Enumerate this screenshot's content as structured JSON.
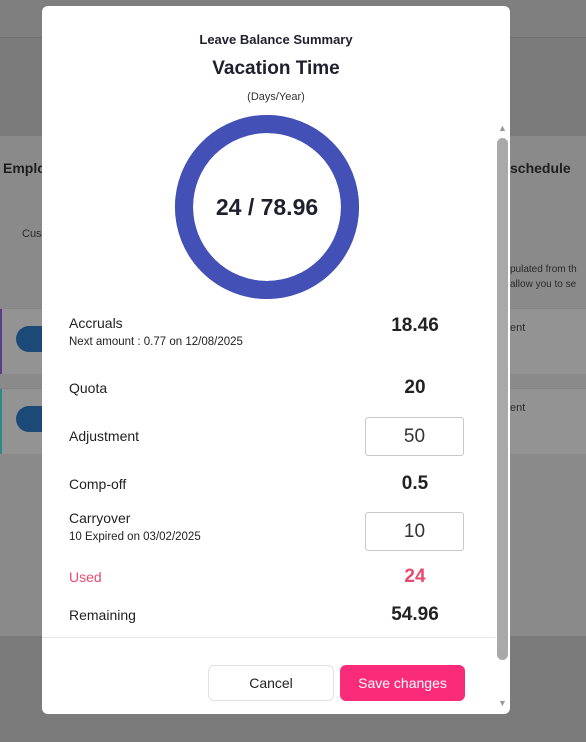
{
  "background": {
    "left_heading": "Emplo",
    "left_small": "Cus",
    "right_heading": "schedule",
    "right_small_1": "pulated from th",
    "right_small_2": "allow you to se",
    "right_row_1": "ent",
    "right_row_2": "ent"
  },
  "modal": {
    "title": "Leave Balance Summary",
    "leave_type": "Vacation Time",
    "unit": "(Days/Year)",
    "donut_label": "24 / 78.96",
    "donut_used": 24,
    "donut_total": 78.96,
    "donut_color": "#4351b6",
    "rows": {
      "accruals": {
        "label": "Accruals",
        "sub": "Next amount : 0.77 on 12/08/2025",
        "value": "18.46"
      },
      "quota": {
        "label": "Quota",
        "value": "20"
      },
      "adjustment": {
        "label": "Adjustment",
        "value": "50"
      },
      "compoff": {
        "label": "Comp-off",
        "value": "0.5"
      },
      "carryover": {
        "label": "Carryover",
        "sub": "10 Expired on 03/02/2025",
        "value": "10"
      },
      "used": {
        "label": "Used",
        "value": "24",
        "color": "#e84b6d"
      },
      "remaining": {
        "label": "Remaining",
        "value": "54.96"
      }
    },
    "buttons": {
      "cancel": "Cancel",
      "save": "Save changes",
      "save_color": "#fa2c79"
    }
  }
}
